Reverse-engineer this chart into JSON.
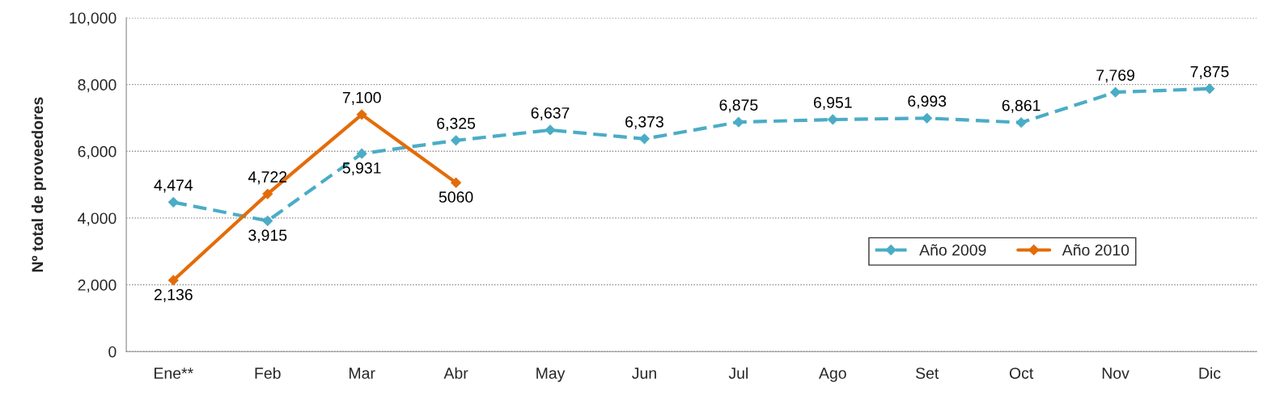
{
  "chart_data": {
    "type": "line",
    "ylabel": "Nº total de proveedores",
    "categories": [
      "Ene**",
      "Feb",
      "Mar",
      "Abr",
      "May",
      "Jun",
      "Jul",
      "Ago",
      "Set",
      "Oct",
      "Nov",
      "Dic"
    ],
    "series": [
      {
        "name": "Año 2009",
        "color": "#4bacc6",
        "line_style": "dashed",
        "values": [
          4474,
          3915,
          5931,
          6325,
          6637,
          6373,
          6875,
          6951,
          6993,
          6861,
          7769,
          7875
        ],
        "value_labels": [
          "4,474",
          "3,915",
          "5,931",
          "6,325",
          "6,637",
          "6,373",
          "6,875",
          "6,951",
          "6,993",
          "6,861",
          "7,769",
          "7,875"
        ]
      },
      {
        "name": "Año 2010",
        "color": "#e36c09",
        "line_style": "solid",
        "values": [
          2136,
          4722,
          7100,
          5060,
          null,
          null,
          null,
          null,
          null,
          null,
          null,
          null
        ],
        "value_labels": [
          "2,136",
          "4,722",
          "7,100",
          "5060",
          null,
          null,
          null,
          null,
          null,
          null,
          null,
          null
        ]
      }
    ],
    "ylim": [
      0,
      10000
    ],
    "yticks": [
      {
        "value": 0,
        "label": "0"
      },
      {
        "value": 2000,
        "label": "2,000"
      },
      {
        "value": 4000,
        "label": "4,000"
      },
      {
        "value": 6000,
        "label": "6,000"
      },
      {
        "value": 8000,
        "label": "8,000"
      },
      {
        "value": 10000,
        "label": "10,000"
      }
    ],
    "grid": "y",
    "legend": "center right",
    "marker": "diamond"
  }
}
